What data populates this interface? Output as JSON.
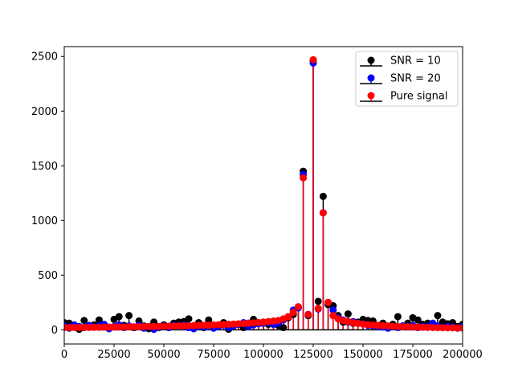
{
  "chart_data": {
    "type": "scatter",
    "style": "stem",
    "title": "",
    "xlabel": "",
    "ylabel": "",
    "xlim": [
      0,
      200000
    ],
    "ylim": [
      -130,
      2590
    ],
    "xticks": [
      0,
      25000,
      50000,
      75000,
      100000,
      125000,
      150000,
      175000,
      200000
    ],
    "yticks": [
      0,
      500,
      1000,
      1500,
      2000,
      2500
    ],
    "legend_position": "top-right",
    "grid": false,
    "series": [
      {
        "name": "SNR = 10",
        "color": "#000000",
        "x": [
          0,
          2500,
          5000,
          7500,
          10000,
          12500,
          15000,
          17500,
          20000,
          22500,
          25000,
          27500,
          30000,
          32500,
          35000,
          37500,
          40000,
          42500,
          45000,
          47500,
          50000,
          52500,
          55000,
          57500,
          60000,
          62500,
          65000,
          67500,
          70000,
          72500,
          75000,
          77500,
          80000,
          82500,
          85000,
          87500,
          90000,
          92500,
          95000,
          97500,
          100000,
          102500,
          105000,
          107500,
          110000,
          112500,
          115000,
          117500,
          120000,
          122500,
          125000,
          127500,
          130000,
          132500,
          135000,
          137500,
          140000,
          142500,
          145000,
          147500,
          150000,
          152500,
          155000,
          157500,
          160000,
          162500,
          165000,
          167500,
          170000,
          172500,
          175000,
          177500,
          180000,
          182500,
          185000,
          187500,
          190000,
          192500,
          195000,
          197500,
          200000
        ],
        "y": [
          65,
          60,
          25,
          5,
          85,
          30,
          45,
          90,
          30,
          20,
          95,
          120,
          40,
          130,
          20,
          80,
          35,
          10,
          70,
          20,
          45,
          20,
          60,
          70,
          75,
          100,
          25,
          65,
          20,
          90,
          30,
          40,
          65,
          5,
          45,
          50,
          20,
          60,
          95,
          55,
          70,
          50,
          60,
          40,
          20,
          110,
          140,
          210,
          1450,
          130,
          2460,
          260,
          1220,
          230,
          220,
          130,
          70,
          145,
          60,
          70,
          95,
          85,
          80,
          40,
          60,
          25,
          50,
          120,
          35,
          60,
          110,
          90,
          50,
          60,
          25,
          130,
          70,
          55,
          65,
          30,
          50
        ]
      },
      {
        "name": "SNR = 20",
        "color": "#0000ff",
        "x": [
          0,
          2500,
          5000,
          7500,
          10000,
          12500,
          15000,
          17500,
          20000,
          22500,
          25000,
          27500,
          30000,
          32500,
          35000,
          37500,
          40000,
          42500,
          45000,
          47500,
          50000,
          52500,
          55000,
          57500,
          60000,
          62500,
          65000,
          67500,
          70000,
          72500,
          75000,
          77500,
          80000,
          82500,
          85000,
          87500,
          90000,
          92500,
          95000,
          97500,
          100000,
          102500,
          105000,
          107500,
          110000,
          112500,
          115000,
          117500,
          120000,
          122500,
          125000,
          127500,
          130000,
          132500,
          135000,
          137500,
          140000,
          142500,
          145000,
          147500,
          150000,
          152500,
          155000,
          157500,
          160000,
          162500,
          165000,
          167500,
          170000,
          172500,
          175000,
          177500,
          180000,
          182500,
          185000,
          187500,
          190000,
          192500,
          195000,
          197500,
          200000
        ],
        "y": [
          35,
          15,
          45,
          30,
          20,
          40,
          25,
          35,
          50,
          10,
          30,
          45,
          20,
          35,
          25,
          40,
          15,
          30,
          5,
          25,
          35,
          20,
          40,
          30,
          45,
          20,
          10,
          35,
          25,
          40,
          15,
          30,
          45,
          20,
          35,
          50,
          65,
          30,
          45,
          55,
          60,
          70,
          50,
          60,
          90,
          120,
          180,
          200,
          1420,
          140,
          2440,
          190,
          1070,
          250,
          180,
          110,
          90,
          70,
          75,
          60,
          55,
          40,
          35,
          30,
          25,
          15,
          30,
          20,
          35,
          25,
          40,
          20,
          30,
          25,
          60,
          35,
          20,
          30,
          25,
          15,
          30
        ]
      },
      {
        "name": "Pure signal",
        "color": "#ff0000",
        "x": [
          0,
          2500,
          5000,
          7500,
          10000,
          12500,
          15000,
          17500,
          20000,
          22500,
          25000,
          27500,
          30000,
          32500,
          35000,
          37500,
          40000,
          42500,
          45000,
          47500,
          50000,
          52500,
          55000,
          57500,
          60000,
          62500,
          65000,
          67500,
          70000,
          72500,
          75000,
          77500,
          80000,
          82500,
          85000,
          87500,
          90000,
          92500,
          95000,
          97500,
          100000,
          102500,
          105000,
          107500,
          110000,
          112500,
          115000,
          117500,
          120000,
          122500,
          125000,
          127500,
          130000,
          132500,
          135000,
          137500,
          140000,
          142500,
          145000,
          147500,
          150000,
          152500,
          155000,
          157500,
          160000,
          162500,
          165000,
          167500,
          170000,
          172500,
          175000,
          177500,
          180000,
          182500,
          185000,
          187500,
          190000,
          192500,
          195000,
          197500,
          200000
        ],
        "y": [
          20,
          20,
          21,
          21,
          22,
          22,
          23,
          23,
          24,
          24,
          25,
          25,
          26,
          27,
          27,
          28,
          29,
          30,
          30,
          31,
          32,
          33,
          34,
          35,
          36,
          37,
          38,
          40,
          41,
          43,
          44,
          46,
          48,
          50,
          52,
          55,
          57,
          60,
          63,
          67,
          70,
          75,
          80,
          85,
          100,
          120,
          160,
          210,
          1390,
          140,
          2470,
          195,
          1070,
          250,
          130,
          100,
          85,
          75,
          65,
          58,
          52,
          47,
          43,
          40,
          37,
          35,
          32,
          30,
          28,
          27,
          25,
          24,
          23,
          22,
          21,
          20,
          19,
          18,
          18,
          17,
          16
        ]
      }
    ]
  }
}
